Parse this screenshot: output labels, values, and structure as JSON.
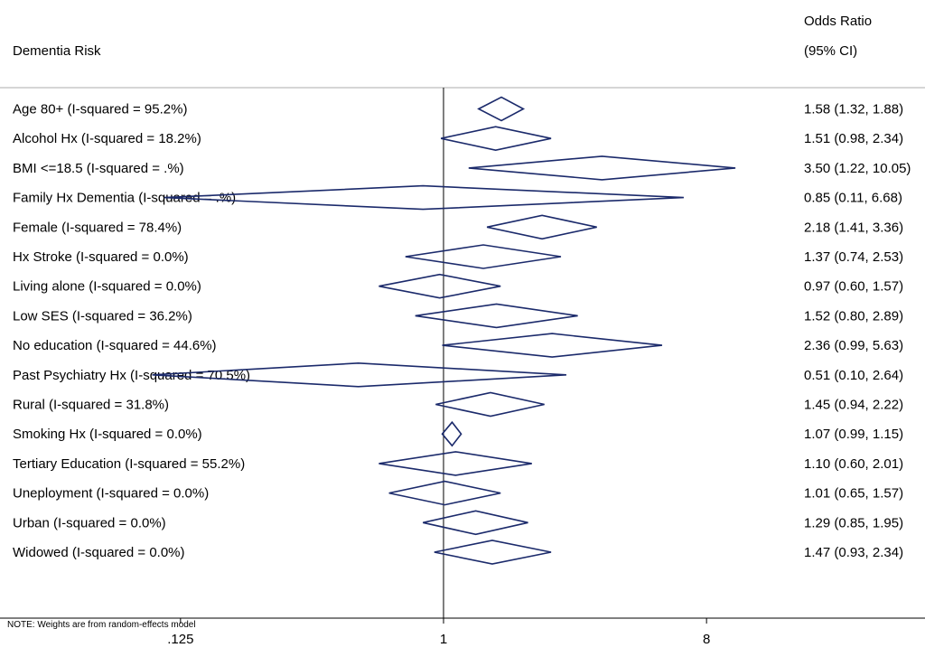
{
  "chart_data": {
    "type": "forest",
    "title": "",
    "header": {
      "left": "Dementia Risk",
      "right_line1": "Odds Ratio",
      "right_line2": "(95% CI)"
    },
    "note": "NOTE: Weights are from random-effects model",
    "x_scale": "log2",
    "xlim": [
      0.03,
      45
    ],
    "reference_line": 1,
    "x_ticks": [
      {
        "value": 0.125,
        "label": ".125"
      },
      {
        "value": 1,
        "label": "1"
      },
      {
        "value": 8,
        "label": "8"
      }
    ],
    "rows": [
      {
        "label": "Age 80+ (I-squared = 95.2%)",
        "or": 1.58,
        "lower": 1.32,
        "upper": 1.88,
        "text": "1.58 (1.32, 1.88)"
      },
      {
        "label": "Alcohol Hx (I-squared = 18.2%)",
        "or": 1.51,
        "lower": 0.98,
        "upper": 2.34,
        "text": "1.51 (0.98, 2.34)"
      },
      {
        "label": "BMI <=18.5 (I-squared = .%)",
        "or": 3.5,
        "lower": 1.22,
        "upper": 10.05,
        "text": "3.50 (1.22, 10.05)"
      },
      {
        "label": "Family Hx Dementia (I-squared = .%)",
        "or": 0.85,
        "lower": 0.11,
        "upper": 6.68,
        "text": "0.85 (0.11, 6.68)"
      },
      {
        "label": "Female (I-squared = 78.4%)",
        "or": 2.18,
        "lower": 1.41,
        "upper": 3.36,
        "text": "2.18 (1.41, 3.36)"
      },
      {
        "label": "Hx Stroke (I-squared = 0.0%)",
        "or": 1.37,
        "lower": 0.74,
        "upper": 2.53,
        "text": "1.37 (0.74, 2.53)"
      },
      {
        "label": "Living alone (I-squared = 0.0%)",
        "or": 0.97,
        "lower": 0.6,
        "upper": 1.57,
        "text": "0.97 (0.60, 1.57)"
      },
      {
        "label": "Low SES (I-squared = 36.2%)",
        "or": 1.52,
        "lower": 0.8,
        "upper": 2.89,
        "text": "1.52 (0.80, 2.89)"
      },
      {
        "label": "No education (I-squared = 44.6%)",
        "or": 2.36,
        "lower": 0.99,
        "upper": 5.63,
        "text": "2.36 (0.99, 5.63)"
      },
      {
        "label": "Past Psychiatry Hx (I-squared = 70.5%)",
        "or": 0.51,
        "lower": 0.1,
        "upper": 2.64,
        "text": "0.51 (0.10, 2.64)"
      },
      {
        "label": "Rural (I-squared = 31.8%)",
        "or": 1.45,
        "lower": 0.94,
        "upper": 2.22,
        "text": "1.45 (0.94, 2.22)"
      },
      {
        "label": "Smoking Hx (I-squared = 0.0%)",
        "or": 1.07,
        "lower": 0.99,
        "upper": 1.15,
        "text": "1.07 (0.99, 1.15)"
      },
      {
        "label": "Tertiary Education (I-squared = 55.2%)",
        "or": 1.1,
        "lower": 0.6,
        "upper": 2.01,
        "text": "1.10 (0.60, 2.01)"
      },
      {
        "label": "Uneployment (I-squared = 0.0%)",
        "or": 1.01,
        "lower": 0.65,
        "upper": 1.57,
        "text": "1.01 (0.65, 1.57)"
      },
      {
        "label": "Urban (I-squared = 0.0%)",
        "or": 1.29,
        "lower": 0.85,
        "upper": 1.95,
        "text": "1.29 (0.85, 1.95)"
      },
      {
        "label": "Widowed (I-squared = 0.0%)",
        "or": 1.47,
        "lower": 0.93,
        "upper": 2.34,
        "text": "1.47 (0.93, 2.34)"
      }
    ],
    "colors": {
      "diamond": "#1b2a6b",
      "axis": "#000000",
      "separator": "#c8c8c8"
    }
  }
}
